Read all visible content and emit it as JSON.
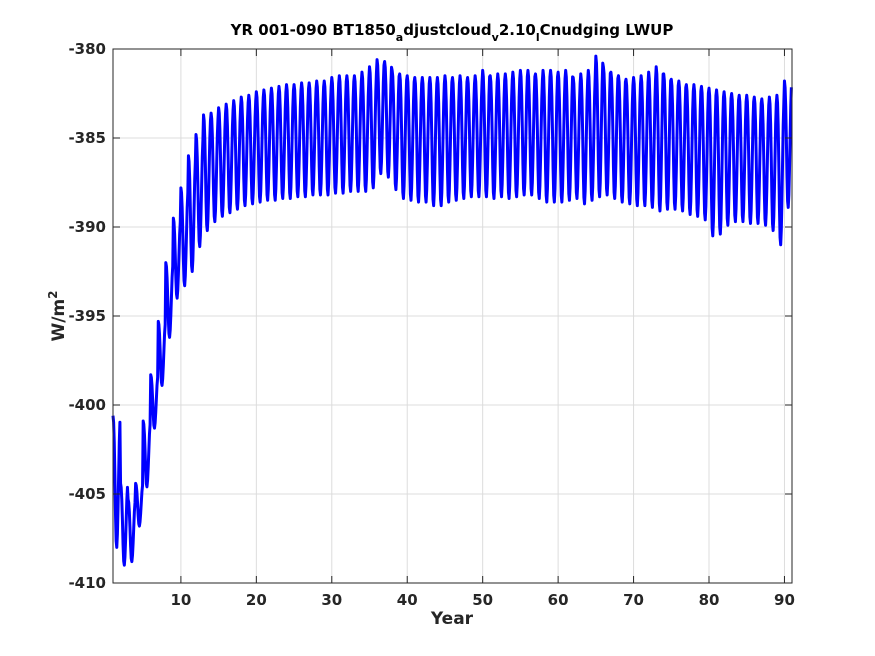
{
  "chart_data": {
    "type": "line",
    "title": {
      "p1": "YR 001-090 BT1850",
      "s1": "a",
      "p2": "djustcloud",
      "s2": "v",
      "p3": "2.10",
      "s3": "l",
      "p4": "Cnudging LWUP"
    },
    "xlabel": "Year",
    "ylabel": {
      "base": "W/m",
      "sup": "2"
    },
    "xlim": [
      1,
      91
    ],
    "ylim": [
      -410,
      -380
    ],
    "xticks": [
      10,
      20,
      30,
      40,
      50,
      60,
      70,
      80,
      90
    ],
    "yticks": [
      -380,
      -385,
      -390,
      -395,
      -400,
      -405,
      -410
    ],
    "xtick_labels": [
      "10",
      "20",
      "30",
      "40",
      "50",
      "60",
      "70",
      "80",
      "90"
    ],
    "ytick_labels": [
      "-380",
      "-385",
      "-390",
      "-395",
      "-400",
      "-405",
      "-410"
    ],
    "grid": true,
    "line_color": "#0000ff",
    "series": [
      {
        "mode": "monthly",
        "annual_max": [
          -400.6,
          -404.4,
          -405.3,
          -404.4,
          -400.9,
          -398.3,
          -395.3,
          -392.0,
          -389.5,
          -387.8,
          -386.0,
          -384.8,
          -383.7,
          -383.6,
          -383.3,
          -383.1,
          -382.9,
          -382.7,
          -382.6,
          -382.4,
          -382.3,
          -382.2,
          -382.1,
          -382.0,
          -382.0,
          -381.9,
          -381.9,
          -381.8,
          -381.8,
          -381.6,
          -381.5,
          -381.5,
          -381.5,
          -381.3,
          -381.0,
          -380.6,
          -380.7,
          -381.2,
          -381.4,
          -381.5,
          -381.6,
          -381.6,
          -381.6,
          -381.6,
          -381.5,
          -381.6,
          -381.5,
          -381.6,
          -381.5,
          -381.2,
          -381.5,
          -381.4,
          -381.4,
          -381.3,
          -381.2,
          -381.2,
          -381.4,
          -381.2,
          -381.2,
          -381.3,
          -381.2,
          -381.6,
          -381.4,
          -381.2,
          -380.4,
          -381.0,
          -381.3,
          -381.5,
          -381.7,
          -381.6,
          -381.5,
          -381.3,
          -381.0,
          -381.4,
          -381.7,
          -381.8,
          -382.0,
          -382.0,
          -382.1,
          -382.2,
          -382.3,
          -382.4,
          -382.5,
          -382.6,
          -382.6,
          -382.7,
          -382.8,
          -382.7,
          -382.6,
          -381.8
        ],
        "annual_min": [
          -408.0,
          -409.0,
          -408.8,
          -406.8,
          -404.6,
          -401.3,
          -398.9,
          -396.2,
          -394.0,
          -393.3,
          -392.5,
          -391.1,
          -390.2,
          -389.7,
          -389.4,
          -389.2,
          -389.0,
          -388.8,
          -388.7,
          -388.6,
          -388.5,
          -388.5,
          -388.4,
          -388.4,
          -388.3,
          -388.3,
          -388.2,
          -388.2,
          -388.2,
          -388.1,
          -388.1,
          -388.0,
          -388.0,
          -388.0,
          -387.8,
          -387.0,
          -387.2,
          -387.9,
          -388.4,
          -388.5,
          -388.6,
          -388.6,
          -388.8,
          -388.8,
          -388.6,
          -388.5,
          -388.4,
          -388.3,
          -388.3,
          -388.3,
          -388.4,
          -388.3,
          -388.4,
          -388.3,
          -388.2,
          -388.2,
          -388.4,
          -388.6,
          -388.6,
          -388.6,
          -388.5,
          -388.4,
          -388.7,
          -388.5,
          -388.3,
          -388.2,
          -388.4,
          -388.6,
          -388.7,
          -388.8,
          -388.8,
          -388.9,
          -389.1,
          -389.0,
          -389.0,
          -389.1,
          -389.3,
          -389.4,
          -389.6,
          -390.5,
          -390.4,
          -389.9,
          -389.7,
          -389.7,
          -389.8,
          -389.8,
          -389.9,
          -390.2,
          -391.0,
          -388.9
        ]
      }
    ]
  }
}
